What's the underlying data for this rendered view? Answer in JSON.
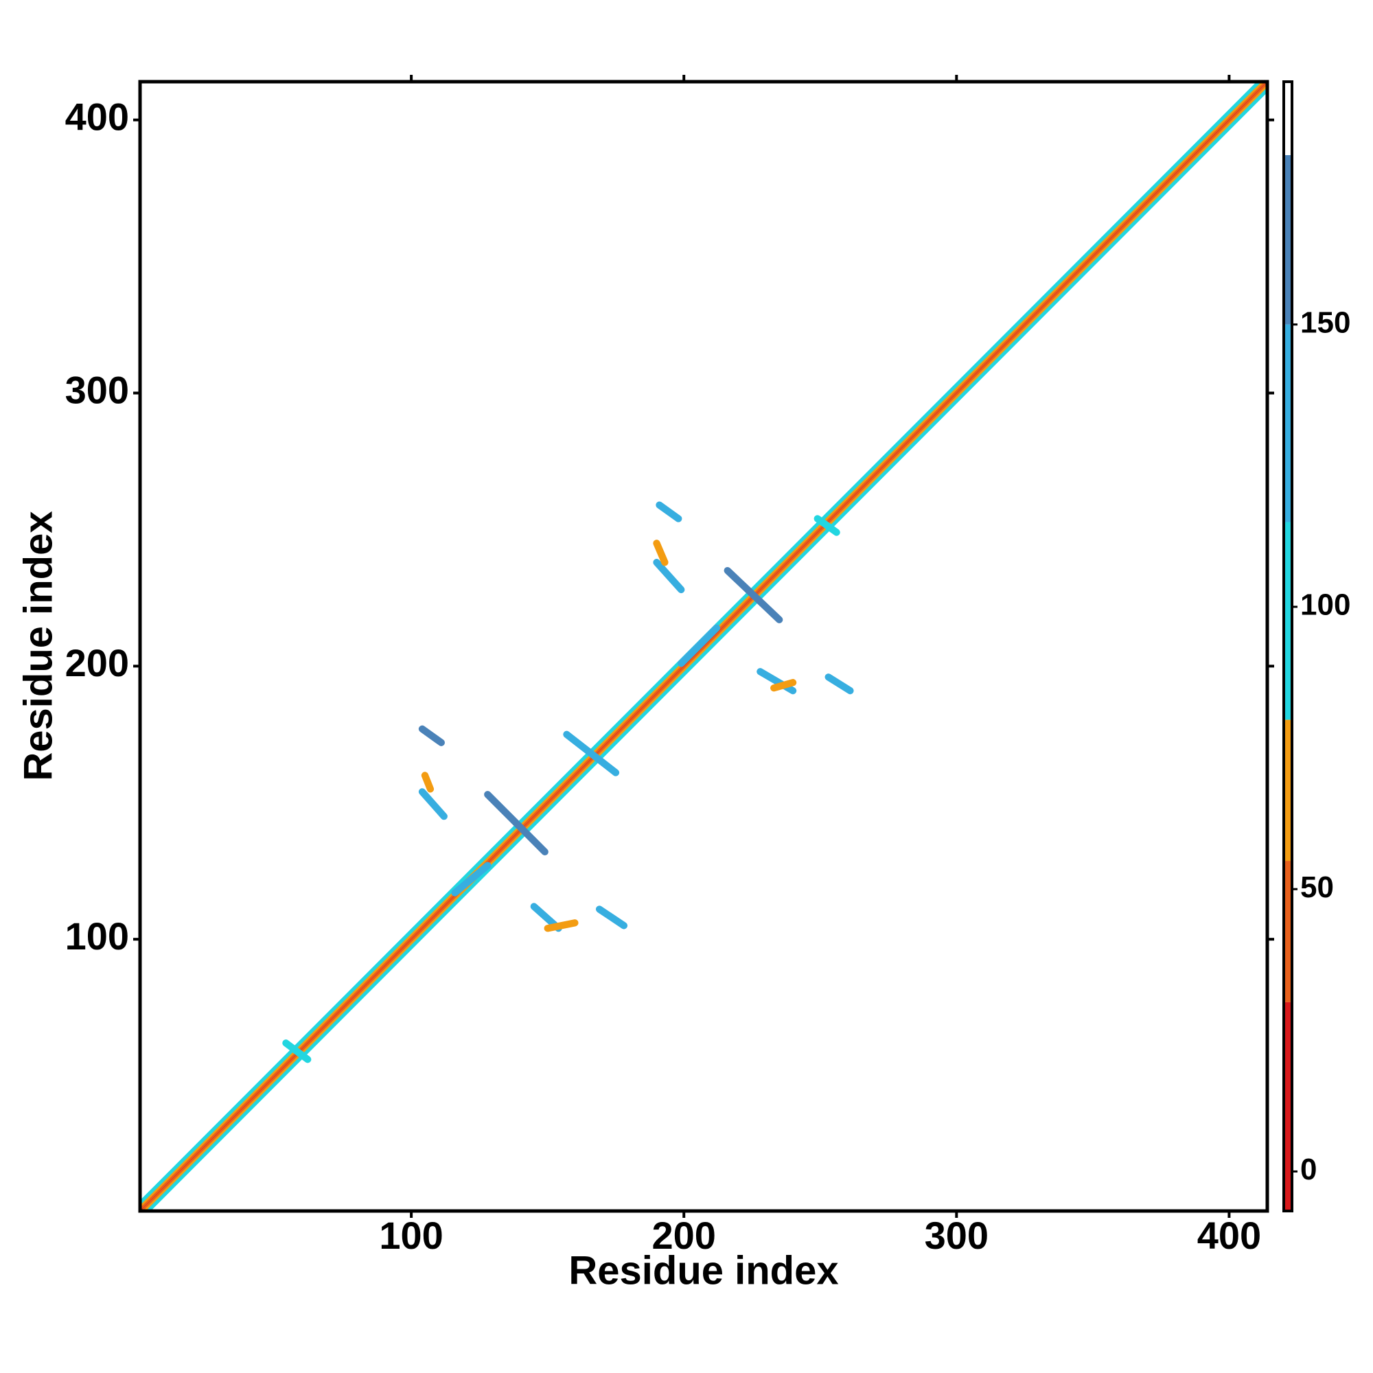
{
  "chart_data": {
    "type": "heatmap",
    "x_label": "Residue index",
    "y_label": "Residue index",
    "xlim": [
      0.5,
      414
    ],
    "ylim": [
      0.5,
      414
    ],
    "xticks": [
      100,
      200,
      300,
      400
    ],
    "yticks": [
      100,
      200,
      300,
      400
    ],
    "colorbar": {
      "lim": [
        -7,
        193
      ],
      "ticks": [
        0,
        50,
        100,
        150
      ],
      "breaks": [
        -7,
        30,
        55,
        80,
        115,
        150,
        180,
        193
      ],
      "colors": [
        "#d7191c",
        "#e8601c",
        "#f39c12",
        "#22d6e0",
        "#37aee0",
        "#4a82b8",
        "#ffffff"
      ]
    },
    "segments": {
      "x0": [
        1,
        2,
        1,
        3,
        1,
        4,
        1,
        128,
        104,
        104,
        145,
        169,
        157,
        116,
        105,
        150,
        191,
        190,
        216,
        228,
        253,
        249,
        199,
        190,
        233,
        54
      ],
      "y0": [
        1,
        1,
        2,
        1,
        3,
        1,
        4,
        153,
        177,
        154,
        112,
        111,
        175,
        117,
        160,
        104,
        259,
        238,
        235,
        198,
        196,
        254,
        201,
        245,
        192,
        62
      ],
      "x1": [
        414,
        414,
        413,
        414,
        412,
        414,
        411,
        149,
        111,
        112,
        154,
        178,
        175,
        128,
        107,
        160,
        198,
        199,
        235,
        240,
        261,
        256,
        212,
        193,
        240,
        62
      ],
      "y1": [
        414,
        413,
        414,
        412,
        414,
        411,
        414,
        132,
        172,
        145,
        104,
        105,
        161,
        127,
        155,
        106,
        254,
        228,
        217,
        191,
        191,
        249,
        214,
        238,
        194,
        56
      ],
      "values": [
        10,
        45,
        45,
        70,
        70,
        100,
        100,
        150,
        150,
        140,
        140,
        145,
        140,
        140,
        60,
        60,
        145,
        145,
        150,
        145,
        140,
        100,
        140,
        60,
        60,
        110
      ]
    }
  }
}
